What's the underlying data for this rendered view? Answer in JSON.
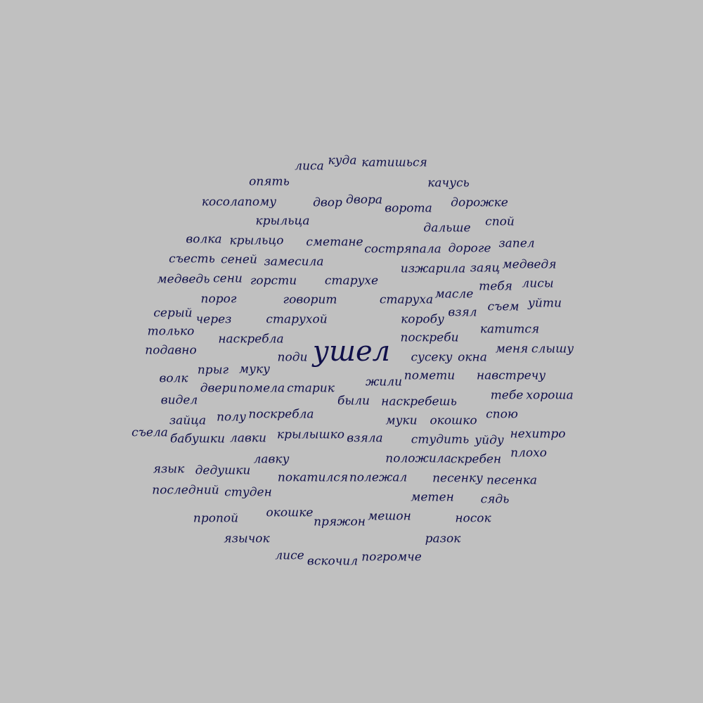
{
  "background": "#c0c0c0",
  "text_color": "#10104a",
  "words": [
    {
      "text": "ушел",
      "weight": 1.0
    },
    {
      "text": "лиса",
      "weight": 0.3
    },
    {
      "text": "куда",
      "weight": 0.3
    },
    {
      "text": "катишься",
      "weight": 0.3
    },
    {
      "text": "опять",
      "weight": 0.3
    },
    {
      "text": "качусь",
      "weight": 0.3
    },
    {
      "text": "косолапому",
      "weight": 0.3
    },
    {
      "text": "двор",
      "weight": 0.3
    },
    {
      "text": "двора",
      "weight": 0.3
    },
    {
      "text": "ворота",
      "weight": 0.3
    },
    {
      "text": "дорожке",
      "weight": 0.3
    },
    {
      "text": "крыльца",
      "weight": 0.3
    },
    {
      "text": "дальше",
      "weight": 0.3
    },
    {
      "text": "спой",
      "weight": 0.3
    },
    {
      "text": "волка",
      "weight": 0.3
    },
    {
      "text": "крыльцо",
      "weight": 0.3
    },
    {
      "text": "сметане",
      "weight": 0.3
    },
    {
      "text": "состряпала",
      "weight": 0.3
    },
    {
      "text": "дороге",
      "weight": 0.3
    },
    {
      "text": "запел",
      "weight": 0.3
    },
    {
      "text": "съесть",
      "weight": 0.3
    },
    {
      "text": "сеней",
      "weight": 0.3
    },
    {
      "text": "замесила",
      "weight": 0.3
    },
    {
      "text": "изжарила",
      "weight": 0.3
    },
    {
      "text": "заяц",
      "weight": 0.3
    },
    {
      "text": "медведя",
      "weight": 0.3
    },
    {
      "text": "медведь",
      "weight": 0.3
    },
    {
      "text": "сени",
      "weight": 0.3
    },
    {
      "text": "горсти",
      "weight": 0.3
    },
    {
      "text": "старухе",
      "weight": 0.3
    },
    {
      "text": "тебя",
      "weight": 0.3
    },
    {
      "text": "лисы",
      "weight": 0.3
    },
    {
      "text": "порог",
      "weight": 0.3
    },
    {
      "text": "говорит",
      "weight": 0.3
    },
    {
      "text": "старуха",
      "weight": 0.3
    },
    {
      "text": "масле",
      "weight": 0.3
    },
    {
      "text": "съем",
      "weight": 0.3
    },
    {
      "text": "уйти",
      "weight": 0.3
    },
    {
      "text": "серый",
      "weight": 0.3
    },
    {
      "text": "через",
      "weight": 0.3
    },
    {
      "text": "старухой",
      "weight": 0.3
    },
    {
      "text": "коробу",
      "weight": 0.3
    },
    {
      "text": "взял",
      "weight": 0.3
    },
    {
      "text": "только",
      "weight": 0.3
    },
    {
      "text": "катится",
      "weight": 0.3
    },
    {
      "text": "наскребла",
      "weight": 0.3
    },
    {
      "text": "поскреби",
      "weight": 0.3
    },
    {
      "text": "подавно",
      "weight": 0.3
    },
    {
      "text": "меня",
      "weight": 0.3
    },
    {
      "text": "слышу",
      "weight": 0.3
    },
    {
      "text": "поди",
      "weight": 0.3
    },
    {
      "text": "сусеку",
      "weight": 0.3
    },
    {
      "text": "окна",
      "weight": 0.3
    },
    {
      "text": "прыг",
      "weight": 0.3
    },
    {
      "text": "муку",
      "weight": 0.3
    },
    {
      "text": "помети",
      "weight": 0.3
    },
    {
      "text": "навстречу",
      "weight": 0.3
    },
    {
      "text": "волк",
      "weight": 0.3
    },
    {
      "text": "жили",
      "weight": 0.3
    },
    {
      "text": "двери",
      "weight": 0.3
    },
    {
      "text": "помела",
      "weight": 0.3
    },
    {
      "text": "старик",
      "weight": 0.3
    },
    {
      "text": "тебе",
      "weight": 0.3
    },
    {
      "text": "хороша",
      "weight": 0.3
    },
    {
      "text": "видел",
      "weight": 0.3
    },
    {
      "text": "были",
      "weight": 0.3
    },
    {
      "text": "наскребешь",
      "weight": 0.3
    },
    {
      "text": "спою",
      "weight": 0.3
    },
    {
      "text": "полу",
      "weight": 0.3
    },
    {
      "text": "поскребла",
      "weight": 0.3
    },
    {
      "text": "зайца",
      "weight": 0.3
    },
    {
      "text": "муки",
      "weight": 0.3
    },
    {
      "text": "окошко",
      "weight": 0.3
    },
    {
      "text": "съела",
      "weight": 0.3
    },
    {
      "text": "нехитро",
      "weight": 0.3
    },
    {
      "text": "бабушки",
      "weight": 0.3
    },
    {
      "text": "лавки",
      "weight": 0.3
    },
    {
      "text": "крылышко",
      "weight": 0.3
    },
    {
      "text": "взяла",
      "weight": 0.3
    },
    {
      "text": "студить",
      "weight": 0.3
    },
    {
      "text": "уйду",
      "weight": 0.3
    },
    {
      "text": "плохо",
      "weight": 0.3
    },
    {
      "text": "лавку",
      "weight": 0.3
    },
    {
      "text": "положила",
      "weight": 0.3
    },
    {
      "text": "скребен",
      "weight": 0.3
    },
    {
      "text": "язык",
      "weight": 0.3
    },
    {
      "text": "дедушки",
      "weight": 0.3
    },
    {
      "text": "покатился",
      "weight": 0.3
    },
    {
      "text": "полежал",
      "weight": 0.3
    },
    {
      "text": "песенку",
      "weight": 0.3
    },
    {
      "text": "песенка",
      "weight": 0.3
    },
    {
      "text": "последний",
      "weight": 0.3
    },
    {
      "text": "студен",
      "weight": 0.3
    },
    {
      "text": "метен",
      "weight": 0.3
    },
    {
      "text": "сядь",
      "weight": 0.3
    },
    {
      "text": "пропой",
      "weight": 0.3
    },
    {
      "text": "окошке",
      "weight": 0.3
    },
    {
      "text": "пряжон",
      "weight": 0.3
    },
    {
      "text": "мешон",
      "weight": 0.3
    },
    {
      "text": "носок",
      "weight": 0.3
    },
    {
      "text": "язычок",
      "weight": 0.3
    },
    {
      "text": "разок",
      "weight": 0.3
    },
    {
      "text": "лисе",
      "weight": 0.3
    },
    {
      "text": "вскочил",
      "weight": 0.3
    },
    {
      "text": "погромче",
      "weight": 0.3
    }
  ]
}
